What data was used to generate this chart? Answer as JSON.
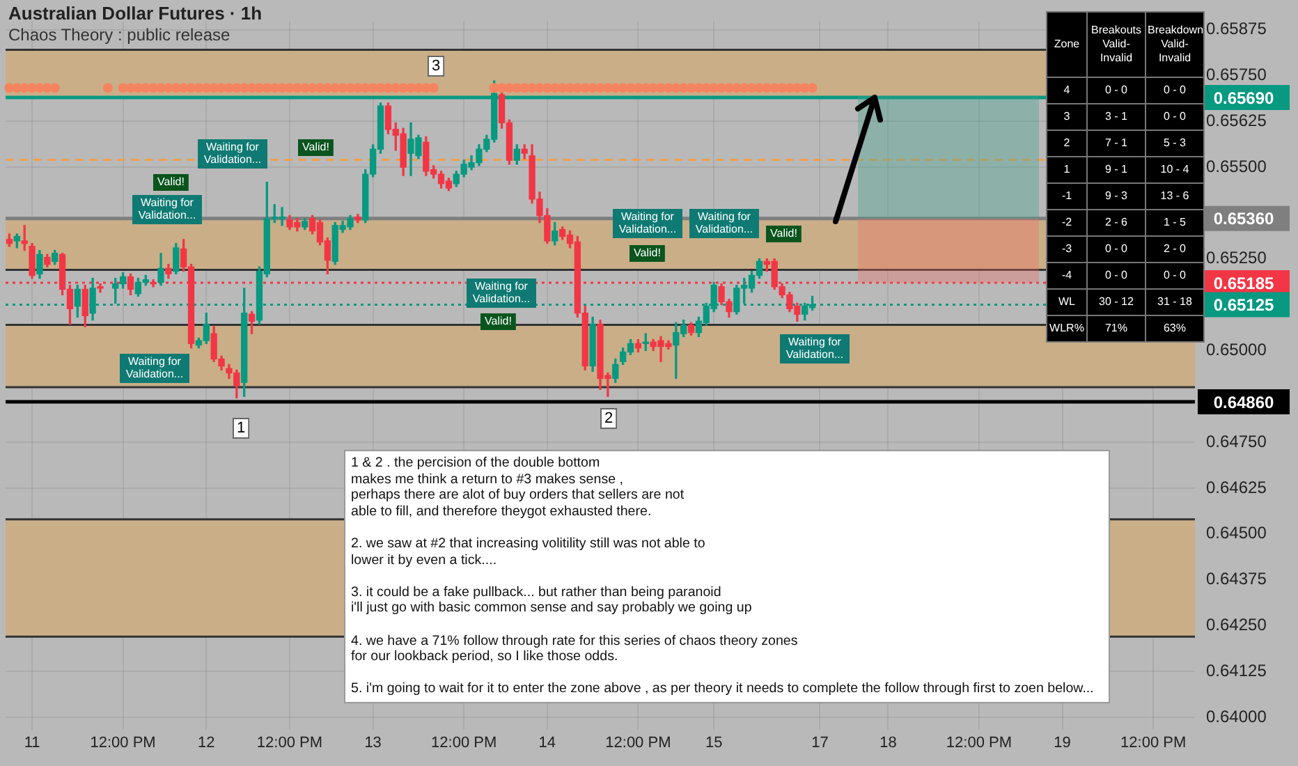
{
  "chart_data": [
    {
      "type": "candlestick",
      "title": "Australian Dollar Futures · 1h",
      "subtitle": "Chaos Theory : public release",
      "categories": [
        null,
        null,
        null,
        "11",
        null,
        null,
        null,
        null,
        null,
        null,
        null,
        null,
        null,
        null,
        null,
        "12:00 PM",
        null,
        null,
        null,
        null,
        null,
        null,
        null,
        null,
        null,
        null,
        "12",
        null,
        null,
        null,
        null,
        null,
        null,
        null,
        null,
        null,
        null,
        "12:00 PM",
        null,
        null,
        null,
        null,
        null,
        null,
        null,
        null,
        null,
        null,
        "13",
        null,
        null,
        null,
        null,
        null,
        null,
        null,
        null,
        null,
        null,
        null,
        "12:00 PM",
        null,
        null,
        null,
        null,
        null,
        null,
        null,
        null,
        null,
        null,
        "14",
        null,
        null,
        null,
        null,
        null,
        null,
        null,
        null,
        null,
        null,
        null,
        "12:00 PM",
        null,
        null,
        null,
        null,
        null,
        null,
        null,
        null,
        null,
        "15",
        null,
        null,
        null,
        null,
        null,
        null,
        null,
        null,
        null,
        null,
        null,
        null,
        null,
        "17",
        null,
        null,
        null,
        null,
        null,
        null,
        null,
        null,
        "18",
        null,
        null,
        null,
        null,
        null,
        null,
        null,
        null,
        null,
        null,
        null,
        "12:00 PM",
        null,
        null,
        null,
        null,
        null,
        null,
        null,
        null,
        null,
        null,
        "19",
        null,
        null,
        null,
        null,
        null,
        null,
        null,
        null,
        null,
        null,
        null,
        "12:00 PM",
        null,
        null,
        null,
        null,
        null
      ],
      "ohlc": [
        [
          0.65303,
          0.65318,
          0.65284,
          0.65292
        ],
        [
          0.65299,
          0.65318,
          0.6528,
          0.65311
        ],
        [
          0.65299,
          0.65341,
          0.65273,
          0.65292
        ],
        [
          0.65284,
          0.65292,
          0.65197,
          0.65205
        ],
        [
          0.65209,
          0.65273,
          0.65197,
          0.65262
        ],
        [
          0.65254,
          0.65262,
          0.65228,
          0.65235
        ],
        [
          0.65243,
          0.65273,
          0.65235,
          0.65265
        ],
        [
          0.65262,
          0.65265,
          0.65152,
          0.65167
        ],
        [
          0.65167,
          0.65178,
          0.65072,
          0.65114
        ],
        [
          0.65121,
          0.65178,
          0.65091,
          0.65167
        ],
        [
          0.65167,
          0.65178,
          0.65065,
          0.65095
        ],
        [
          0.65102,
          0.65197,
          0.65083,
          0.6517
        ],
        [
          0.65174,
          0.65182,
          0.65159,
          0.6517
        ],
        null,
        [
          0.6517,
          0.65197,
          0.65129,
          0.65182
        ],
        [
          0.65182,
          0.65212,
          0.6517,
          0.65201
        ],
        [
          0.65201,
          0.65209,
          0.65152,
          0.65167
        ],
        [
          0.65155,
          0.65197,
          0.65148,
          0.65186
        ],
        [
          0.65186,
          0.65205,
          0.65178,
          0.65193
        ],
        [
          0.65186,
          0.65193,
          0.65174,
          0.65182
        ],
        [
          0.65186,
          0.65265,
          0.65178,
          0.65224
        ],
        [
          0.65224,
          0.65235,
          0.65197,
          0.65209
        ],
        [
          0.65216,
          0.65292,
          0.65209,
          0.6528
        ],
        [
          0.65277,
          0.65303,
          0.65216,
          0.65228
        ],
        [
          0.65228,
          0.65235,
          0.65007,
          0.65019
        ],
        [
          0.65015,
          0.65034,
          0.65007,
          0.65027
        ],
        [
          0.65027,
          0.65102,
          0.65019,
          0.65072
        ],
        [
          0.65046,
          0.65065,
          0.6497,
          0.64977
        ],
        [
          0.64977,
          0.64985,
          0.64947,
          0.64958
        ],
        [
          0.64951,
          0.64962,
          0.64924,
          0.64939
        ],
        [
          0.64939,
          0.64947,
          0.64871,
          0.64905
        ],
        [
          0.64913,
          0.6517,
          0.64875,
          0.65102
        ],
        [
          0.65099,
          0.65106,
          0.65046,
          0.6508
        ],
        [
          0.65083,
          0.65228,
          0.65072,
          0.65216
        ],
        [
          0.65209,
          0.65459,
          0.65201,
          0.6536
        ],
        [
          0.6536,
          0.65398,
          0.65349,
          0.65364
        ],
        [
          0.6536,
          0.6539,
          0.65341,
          0.65364
        ],
        [
          0.65356,
          0.65368,
          0.6533,
          0.65337
        ],
        [
          0.65349,
          0.6536,
          0.65326,
          0.65337
        ],
        [
          0.65337,
          0.6536,
          0.6533,
          0.65352
        ],
        [
          0.6536,
          0.65368,
          0.65318,
          0.65326
        ],
        [
          0.65349,
          0.65356,
          0.65288,
          0.65296
        ],
        [
          0.65299,
          0.65307,
          0.65209,
          0.65246
        ],
        [
          0.65243,
          0.65349,
          0.65235,
          0.65341
        ],
        [
          0.6533,
          0.65353,
          0.65322,
          0.65341
        ],
        [
          0.65337,
          0.65368,
          0.6533,
          0.6536
        ],
        [
          0.65364,
          0.65371,
          0.65349,
          0.65356
        ],
        [
          0.65356,
          0.65493,
          0.65349,
          0.65481
        ],
        [
          0.65481,
          0.65561,
          0.65474,
          0.65549
        ],
        [
          0.65549,
          0.65675,
          0.65538,
          0.65667
        ],
        [
          0.65667,
          0.65675,
          0.65591,
          0.65603
        ],
        [
          0.65603,
          0.65621,
          0.65546,
          0.65587
        ],
        [
          0.65591,
          0.65606,
          0.65477,
          0.655
        ],
        [
          0.65538,
          0.65621,
          0.65477,
          0.65576
        ],
        [
          0.65531,
          0.65587,
          0.65523,
          0.6558
        ],
        [
          0.65568,
          0.65583,
          0.65477,
          0.65489
        ],
        [
          0.65493,
          0.65504,
          0.6547,
          0.65481
        ],
        [
          0.65481,
          0.65489,
          0.65443,
          0.65455
        ],
        [
          0.65462,
          0.6547,
          0.65436,
          0.65443
        ],
        [
          0.65455,
          0.65489,
          0.65447,
          0.65481
        ],
        [
          0.65481,
          0.65519,
          0.65474,
          0.65508
        ],
        [
          0.655,
          0.65531,
          0.65493,
          0.65512
        ],
        [
          0.65512,
          0.65561,
          0.65504,
          0.65549
        ],
        [
          0.65549,
          0.65587,
          0.65542,
          0.65576
        ],
        [
          0.65576,
          0.65735,
          0.65568,
          0.65701
        ],
        [
          0.65697,
          0.65705,
          0.65606,
          0.65621
        ],
        [
          0.65621,
          0.65629,
          0.65508,
          0.65519
        ],
        [
          0.65519,
          0.65561,
          0.65508,
          0.65549
        ],
        [
          0.65549,
          0.65561,
          0.65523,
          0.65538
        ],
        [
          0.65531,
          0.65561,
          0.65402,
          0.65413
        ],
        [
          0.65413,
          0.65432,
          0.65349,
          0.65368
        ],
        [
          0.65368,
          0.65387,
          0.65292,
          0.65299
        ],
        [
          0.65299,
          0.65349,
          0.65288,
          0.65326
        ],
        [
          0.6533,
          0.65337,
          0.65303,
          0.65311
        ],
        [
          0.65315,
          0.65326,
          0.6528,
          0.65292
        ],
        [
          0.65296,
          0.65311,
          0.65091,
          0.65102
        ],
        [
          0.65102,
          0.65121,
          0.64947,
          0.64958
        ],
        [
          0.64958,
          0.65091,
          0.64943,
          0.65072
        ],
        [
          0.65072,
          0.65083,
          0.64894,
          0.64924
        ],
        [
          0.64932,
          0.64939,
          0.64875,
          0.64924
        ],
        [
          0.64924,
          0.64977,
          0.64913,
          0.64962
        ],
        [
          0.6497,
          0.65007,
          0.64962,
          0.64996
        ],
        [
          0.64996,
          0.6503,
          0.64989,
          0.65019
        ],
        [
          0.65019,
          0.6503,
          0.64996,
          0.65007
        ],
        [
          0.65019,
          0.65046,
          0.65,
          0.65023
        ],
        [
          0.65023,
          0.6503,
          0.65,
          0.65011
        ],
        [
          0.65027,
          0.65038,
          0.6497,
          0.65011
        ],
        [
          0.65019,
          0.65027,
          0.65004,
          0.65011
        ],
        [
          0.65015,
          0.65076,
          0.64924,
          0.65049
        ],
        [
          0.65046,
          0.65083,
          0.65038,
          0.65069
        ],
        [
          0.65069,
          0.65076,
          0.65042,
          0.65049
        ],
        [
          0.65049,
          0.65091,
          0.65038,
          0.6508
        ],
        [
          0.65076,
          0.65129,
          0.65069,
          0.65121
        ],
        [
          0.65114,
          0.65186,
          0.65106,
          0.65178
        ],
        [
          0.65174,
          0.65182,
          0.65125,
          0.65133
        ],
        [
          0.65133,
          0.6514,
          0.65091,
          0.65106
        ],
        [
          0.65106,
          0.65178,
          0.65099,
          0.6517
        ],
        [
          0.6517,
          0.65197,
          0.65129,
          0.65178
        ],
        [
          0.6517,
          0.65216,
          0.65159,
          0.65205
        ],
        [
          0.65205,
          0.6525,
          0.65197,
          0.65243
        ],
        [
          0.65243,
          0.6525,
          0.65216,
          0.65235
        ],
        [
          0.65243,
          0.6525,
          0.65167,
          0.65174
        ],
        [
          0.65174,
          0.65182,
          0.65144,
          0.65152
        ],
        [
          0.65152,
          0.65159,
          0.65106,
          0.65114
        ],
        [
          0.65121,
          0.65129,
          0.6508,
          0.65099
        ],
        [
          0.65099,
          0.65129,
          0.65083,
          0.65121
        ],
        [
          0.65117,
          0.65148,
          0.6511,
          0.65125
        ],
        null,
        null,
        null,
        null,
        null,
        null,
        null,
        null,
        null,
        null,
        null,
        null,
        null,
        null,
        null,
        null,
        null,
        null,
        null,
        null,
        null,
        null,
        null,
        null,
        null,
        null,
        null,
        null,
        null,
        null,
        null,
        null,
        null,
        null,
        null,
        null,
        null,
        null,
        null,
        null,
        null,
        null,
        null,
        null,
        null,
        null,
        null,
        null,
        null,
        null
      ],
      "series": [
        {
          "type": "scatter",
          "color": "#f4845f",
          "values": [
            0.65716,
            0.65716,
            0.65716,
            0.65716,
            0.65716,
            0.65716,
            0.65716,
            null,
            null,
            null,
            null,
            null,
            null,
            0.65716,
            null,
            0.65716,
            0.65716,
            0.65716,
            0.65716,
            0.65716,
            0.65716,
            0.65716,
            0.65716,
            0.65716,
            0.65716,
            0.65716,
            0.65716,
            0.65716,
            0.65716,
            0.65716,
            0.65716,
            0.65716,
            0.65716,
            0.65716,
            0.65716,
            0.65716,
            0.65716,
            0.65716,
            0.65716,
            0.65716,
            0.65716,
            0.65716,
            0.65716,
            0.65716,
            0.65716,
            0.65716,
            0.65716,
            0.65716,
            0.65716,
            0.65716,
            0.65716,
            0.65716,
            0.65716,
            0.65716,
            0.65716,
            0.65716,
            0.65716,
            null,
            null,
            null,
            null,
            null,
            null,
            null,
            0.65716,
            0.65716,
            0.65716,
            0.65716,
            0.65716,
            0.65716,
            0.65716,
            0.65716,
            0.65716,
            0.65716,
            0.65716,
            0.65716,
            0.65716,
            0.65716,
            0.65716,
            0.65716,
            0.65716,
            0.65716,
            0.65716,
            0.65716,
            0.65716,
            0.65716,
            0.65716,
            0.65716,
            0.65716,
            0.65716,
            0.65716,
            0.65716,
            0.65716,
            0.65716,
            0.65716,
            0.65716,
            0.65716,
            0.65716,
            0.65716,
            0.65716,
            0.65716,
            0.65716,
            0.65716,
            0.65716,
            0.65716,
            0.65716,
            0.65716,
            null,
            null,
            null,
            null,
            null,
            null,
            null,
            null,
            null,
            null,
            null,
            null,
            null,
            null,
            null,
            null,
            null,
            null,
            null,
            null,
            null,
            null,
            null,
            null,
            null,
            null,
            null,
            null,
            null,
            null,
            null,
            null,
            null,
            null,
            null,
            null,
            null,
            null,
            null,
            null,
            null,
            null,
            null,
            null,
            null,
            null,
            null,
            null,
            null,
            null
          ]
        }
      ],
      "ylim": [
        0.63966,
        0.65898
      ],
      "yticks": [
        {
          "value": 0.64,
          "label": "0.64000"
        },
        {
          "value": 0.64125,
          "label": "0.64125"
        },
        {
          "value": 0.6425,
          "label": "0.64250"
        },
        {
          "value": 0.64375,
          "label": "0.64375"
        },
        {
          "value": 0.645,
          "label": "0.64500"
        },
        {
          "value": 0.64625,
          "label": "0.64625"
        },
        {
          "value": 0.6475,
          "label": "0.64750"
        },
        {
          "value": 0.65,
          "label": "0.65000"
        },
        {
          "value": 0.6525,
          "label": "0.65250"
        },
        {
          "value": 0.655,
          "label": "0.65500"
        },
        {
          "value": 0.65625,
          "label": "0.65625"
        },
        {
          "value": 0.6575,
          "label": "0.65750"
        },
        {
          "value": 0.65875,
          "label": "0.65875"
        }
      ],
      "grid": true,
      "bands": [
        {
          "axis": "y",
          "from": 0.6569,
          "to": 0.6582,
          "color": "#c9ae88"
        },
        {
          "axis": "y",
          "from": 0.6522,
          "to": 0.6536,
          "color": "#c9ae88"
        },
        {
          "axis": "y",
          "from": 0.649,
          "to": 0.6507,
          "color": "#c9ae88"
        },
        {
          "axis": "y",
          "from": 0.6422,
          "to": 0.6454,
          "color": "#c9ae88"
        }
      ],
      "ref_lines": [
        {
          "axis": "y",
          "value": 0.6569,
          "label": "0.65690",
          "color": "#089981"
        },
        {
          "axis": "y",
          "value": 0.6536,
          "label": "0.65360",
          "color": "#7f7f7f"
        },
        {
          "axis": "y",
          "value": 0.65185,
          "label": "0.65185",
          "color": "#f23645",
          "line_style": "dotted"
        },
        {
          "axis": "y",
          "value": 0.65125,
          "label": "0.65125",
          "color": "#089981",
          "line_style": "dotted"
        },
        {
          "axis": "y",
          "value": 0.6486,
          "label": "0.64860",
          "color": "#000000"
        },
        {
          "axis": "y",
          "value": 0.6552,
          "color": "#f0a050",
          "line_style": "dashed"
        }
      ],
      "annotations": [
        "1",
        "2",
        "3",
        "Waiting for Validation...",
        "Valid!",
        "Waiting for Validation...",
        "Waiting for Validation...",
        "Valid!",
        "Waiting for Validation...",
        "Valid!",
        "Waiting for Validation...",
        "Valid!",
        "Waiting for Validation...",
        "Valid!",
        "Waiting for Validation...",
        "1 & 2 . the percision of the double bottom\nmakes me think a return to #3 makes sense ,\nperhaps there are alot of buy orders that sellers are not\nable to fill, and therefore theygot exhausted there.\n\n2. we saw at #2 that increasing volitility still was not able to\nlower it by even a tick....\n\n3. it could be a fake pullback... but rather than being paranoid\ni'll just go with basic common sense and say probably we going up\n\n4. we have a 71% follow through rate for this series of chaos theory zones\nfor our lookback period, so I like those odds.\n\n5. i'm going to wait for it to enter the zone above , as per theory it needs to complete the follow through first to zoen below..."
      ]
    },
    {
      "type": "other",
      "annotations": [
        "Zone",
        "Breakouts\nValid-Invalid",
        "Breakdown\nValid-Invalid",
        "4",
        "0 - 0",
        "0 - 0",
        "3",
        "3 - 1",
        "0 - 0",
        "2",
        "7 - 1",
        "5 - 3",
        "1",
        "9 - 1",
        "10 - 4",
        "-1",
        "9 - 3",
        "13 - 6",
        "-2",
        "2 - 6",
        "1 - 5",
        "-3",
        "0 - 0",
        "2 - 0",
        "-4",
        "0 - 0",
        "0 - 0",
        "WL",
        "30 - 12",
        "31 - 18",
        "WLR%",
        "71%",
        "63%"
      ]
    }
  ]
}
